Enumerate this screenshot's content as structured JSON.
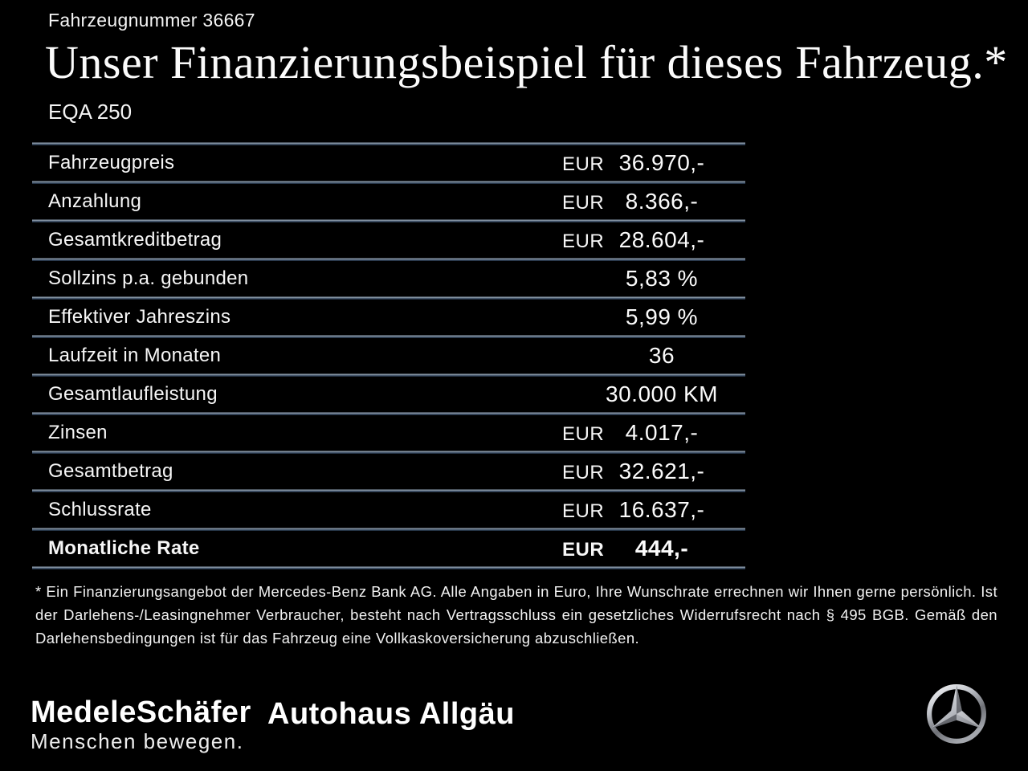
{
  "header": {
    "vehicle_number": "Fahrzeugnummer 36667",
    "title": "Unser Finanzierungsbeispiel für dieses Fahrzeug.*",
    "model": "EQA 250"
  },
  "table": {
    "rows": [
      {
        "label": "Fahrzeugpreis",
        "currency": "EUR",
        "value": "36.970,-",
        "bold": false
      },
      {
        "label": "Anzahlung",
        "currency": "EUR",
        "value": "8.366,-",
        "bold": false
      },
      {
        "label": "Gesamtkreditbetrag",
        "currency": "EUR",
        "value": "28.604,-",
        "bold": false
      },
      {
        "label": "Sollzins p.a. gebunden",
        "currency": "",
        "value": "5,83 %",
        "bold": false
      },
      {
        "label": "Effektiver Jahreszins",
        "currency": "",
        "value": "5,99 %",
        "bold": false
      },
      {
        "label": "Laufzeit in Monaten",
        "currency": "",
        "value": "36",
        "bold": false
      },
      {
        "label": "Gesamtlaufleistung",
        "currency": "",
        "value": "30.000 KM",
        "bold": false
      },
      {
        "label": "Zinsen",
        "currency": "EUR",
        "value": "4.017,-",
        "bold": false
      },
      {
        "label": "Gesamtbetrag",
        "currency": "EUR",
        "value": "32.621,-",
        "bold": false
      },
      {
        "label": "Schlussrate",
        "currency": "EUR",
        "value": "16.637,-",
        "bold": false
      },
      {
        "label": "Monatliche Rate",
        "currency": "EUR",
        "value": "444,-",
        "bold": true
      }
    ]
  },
  "footnote": "* Ein Finanzierungsangebot der Mercedes-Benz Bank AG. Alle Angaben in Euro, Ihre Wunschrate errechnen wir Ihnen gerne persönlich. Ist der Darlehens-/Leasingnehmer Verbraucher, besteht nach Vertragsschluss ein gesetzliches Widerrufsrecht nach § 495 BGB. Gemäß den Darlehensbedingungen ist für das Fahrzeug eine Vollkaskoversicherung abzuschließen.",
  "footer": {
    "dealer_logo": "MedeleSchäfer",
    "dealer_tagline": "Menschen bewegen.",
    "dealer_second_logo": "Autohaus Allgäu",
    "brand_icon": "mercedes-star-icon"
  },
  "colors": {
    "background": "#000000",
    "text": "#ffffff",
    "divider_steel_blue": "#465970",
    "divider_light": "#93a0ad"
  }
}
